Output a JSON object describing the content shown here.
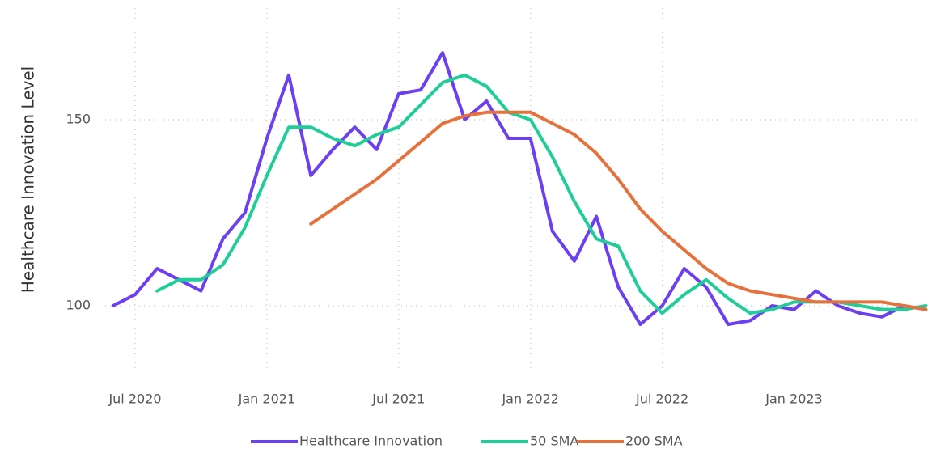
{
  "chart_data": {
    "type": "line",
    "ylabel": "Healthcare Innovation Level",
    "x": [
      "2020-06",
      "2020-07",
      "2020-08",
      "2020-09",
      "2020-10",
      "2020-11",
      "2020-12",
      "2021-01",
      "2021-02",
      "2021-03",
      "2021-04",
      "2021-05",
      "2021-06",
      "2021-07",
      "2021-08",
      "2021-09",
      "2021-10",
      "2021-11",
      "2021-12",
      "2022-01",
      "2022-02",
      "2022-03",
      "2022-04",
      "2022-05",
      "2022-06",
      "2022-07",
      "2022-08",
      "2022-09",
      "2022-10",
      "2022-11",
      "2022-12",
      "2023-01",
      "2023-02",
      "2023-03",
      "2023-04",
      "2023-05",
      "2023-06",
      "2023-07"
    ],
    "series": [
      {
        "name": "Healthcare Innovation",
        "color": "#6c3ef4",
        "values": [
          100,
          103,
          110,
          107,
          104,
          118,
          125,
          145,
          162,
          135,
          142,
          148,
          142,
          157,
          158,
          168,
          150,
          155,
          145,
          145,
          120,
          112,
          124,
          105,
          95,
          100,
          110,
          105,
          95,
          96,
          100,
          99,
          104,
          100,
          98,
          97,
          100,
          99
        ]
      },
      {
        "name": "50 SMA",
        "color": "#1dcf97",
        "values": [
          null,
          null,
          104,
          107,
          107,
          111,
          121,
          135,
          148,
          148,
          145,
          143,
          146,
          148,
          154,
          160,
          162,
          159,
          152,
          150,
          140,
          128,
          118,
          116,
          104,
          98,
          103,
          107,
          102,
          98,
          99,
          101,
          101,
          101,
          100,
          99,
          99,
          100
        ]
      },
      {
        "name": "200 SMA",
        "color": "#e8703a",
        "values": [
          null,
          null,
          null,
          null,
          null,
          null,
          null,
          null,
          null,
          122,
          126,
          130,
          134,
          139,
          144,
          149,
          151,
          152,
          152,
          152,
          149,
          146,
          141,
          134,
          126,
          120,
          115,
          110,
          106,
          104,
          103,
          102,
          101,
          101,
          101,
          101,
          100,
          99
        ]
      }
    ],
    "xticks": [
      {
        "value": "2020-07",
        "label": "Jul 2020"
      },
      {
        "value": "2021-01",
        "label": "Jan 2021"
      },
      {
        "value": "2021-07",
        "label": "Jul 2021"
      },
      {
        "value": "2022-01",
        "label": "Jan 2022"
      },
      {
        "value": "2022-07",
        "label": "Jul 2022"
      },
      {
        "value": "2023-01",
        "label": "Jan 2023"
      }
    ],
    "ylim": [
      80,
      180
    ],
    "yticks": [
      100,
      150
    ],
    "grid": true,
    "legend": "bottom"
  }
}
